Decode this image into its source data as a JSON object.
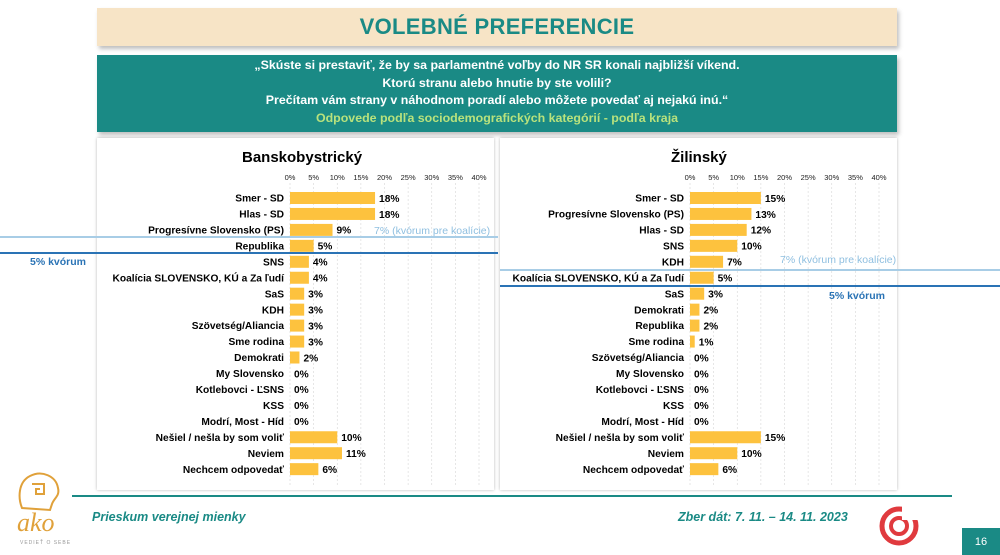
{
  "header": {
    "title": "VOLEBNÉ PREFERENCIE"
  },
  "question": {
    "lines": [
      "„Skúste si prestaviť, že by sa parlamentné voľby do NR SR konali najbližší víkend.",
      "Ktorú stranu alebo hnutie by ste volili?",
      "Prečítam vám strany v náhodnom poradí alebo môžete povedať aj nejakú inú.“"
    ],
    "subtitle": "Odpovede podľa sociodemografických kategórií - podľa kraja"
  },
  "colors": {
    "teal": "#1a8a85",
    "bar": "#fdc23e",
    "threshold_line": "#2a73b5",
    "coalition_line": "#a8cde6"
  },
  "chart_data": [
    {
      "type": "bar",
      "orientation": "horizontal",
      "title": "Banskobystrický",
      "ticks": [
        "0%",
        "5%",
        "10%",
        "15%",
        "20%",
        "25%",
        "30%",
        "35%",
        "40%"
      ],
      "xlim": [
        0,
        40
      ],
      "categories": [
        "Smer - SD",
        "Hlas - SD",
        "Progresívne Slovensko (PS)",
        "Republika",
        "SNS",
        "Koalícia SLOVENSKO, KÚ a Za ľudí",
        "SaS",
        "KDH",
        "Szövetség/Aliancia",
        "Sme rodina",
        "Demokrati",
        "My Slovensko",
        "Kotlebovci - ĽSNS",
        "KSS",
        "Modrí, Most - Híd",
        "Nešiel / nešla by som voliť",
        "Neviem",
        "Nechcem odpovedať"
      ],
      "values": [
        18,
        18,
        9,
        5,
        4,
        4,
        3,
        3,
        3,
        3,
        2,
        0,
        0,
        0,
        0,
        10,
        11,
        6
      ],
      "labels": [
        "18%",
        "18%",
        "9%",
        "5%",
        "4%",
        "4%",
        "3%",
        "3%",
        "3%",
        "3%",
        "2%",
        "0%",
        "0%",
        "0%",
        "0%",
        "10%",
        "11%",
        "6%"
      ],
      "annotations": {
        "coalition": "7% (kvórum pre koalície)",
        "quorum": "5% kvórum"
      }
    },
    {
      "type": "bar",
      "orientation": "horizontal",
      "title": "Žilinský",
      "ticks": [
        "0%",
        "5%",
        "10%",
        "15%",
        "20%",
        "25%",
        "30%",
        "35%",
        "40%"
      ],
      "xlim": [
        0,
        40
      ],
      "categories": [
        "Smer - SD",
        "Progresívne Slovensko (PS)",
        "Hlas - SD",
        "SNS",
        "KDH",
        "Koalícia SLOVENSKO, KÚ a Za ľudí",
        "SaS",
        "Demokrati",
        "Republika",
        "Sme rodina",
        "Szövetség/Aliancia",
        "My Slovensko",
        "Kotlebovci - ĽSNS",
        "KSS",
        "Modrí, Most - Híd",
        "Nešiel / nešla by som voliť",
        "Neviem",
        "Nechcem odpovedať"
      ],
      "values": [
        15,
        13,
        12,
        10,
        7,
        5,
        3,
        2,
        2,
        1,
        0,
        0,
        0,
        0,
        0,
        15,
        10,
        6
      ],
      "labels": [
        "15%",
        "13%",
        "12%",
        "10%",
        "7%",
        "5%",
        "3%",
        "2%",
        "2%",
        "1%",
        "0%",
        "0%",
        "0%",
        "0%",
        "0%",
        "15%",
        "10%",
        "6%"
      ],
      "annotations": {
        "coalition": "7% (kvórum pre koalície)",
        "quorum": "5% kvórum"
      }
    }
  ],
  "footer": {
    "survey": "Prieskum verejnej mienky",
    "dates": "Zber dát: 7. 11. – 14. 11. 2023",
    "page": "16"
  },
  "logo": {
    "name": "ako",
    "tagline": "VEDIEŤ O SEBE"
  }
}
